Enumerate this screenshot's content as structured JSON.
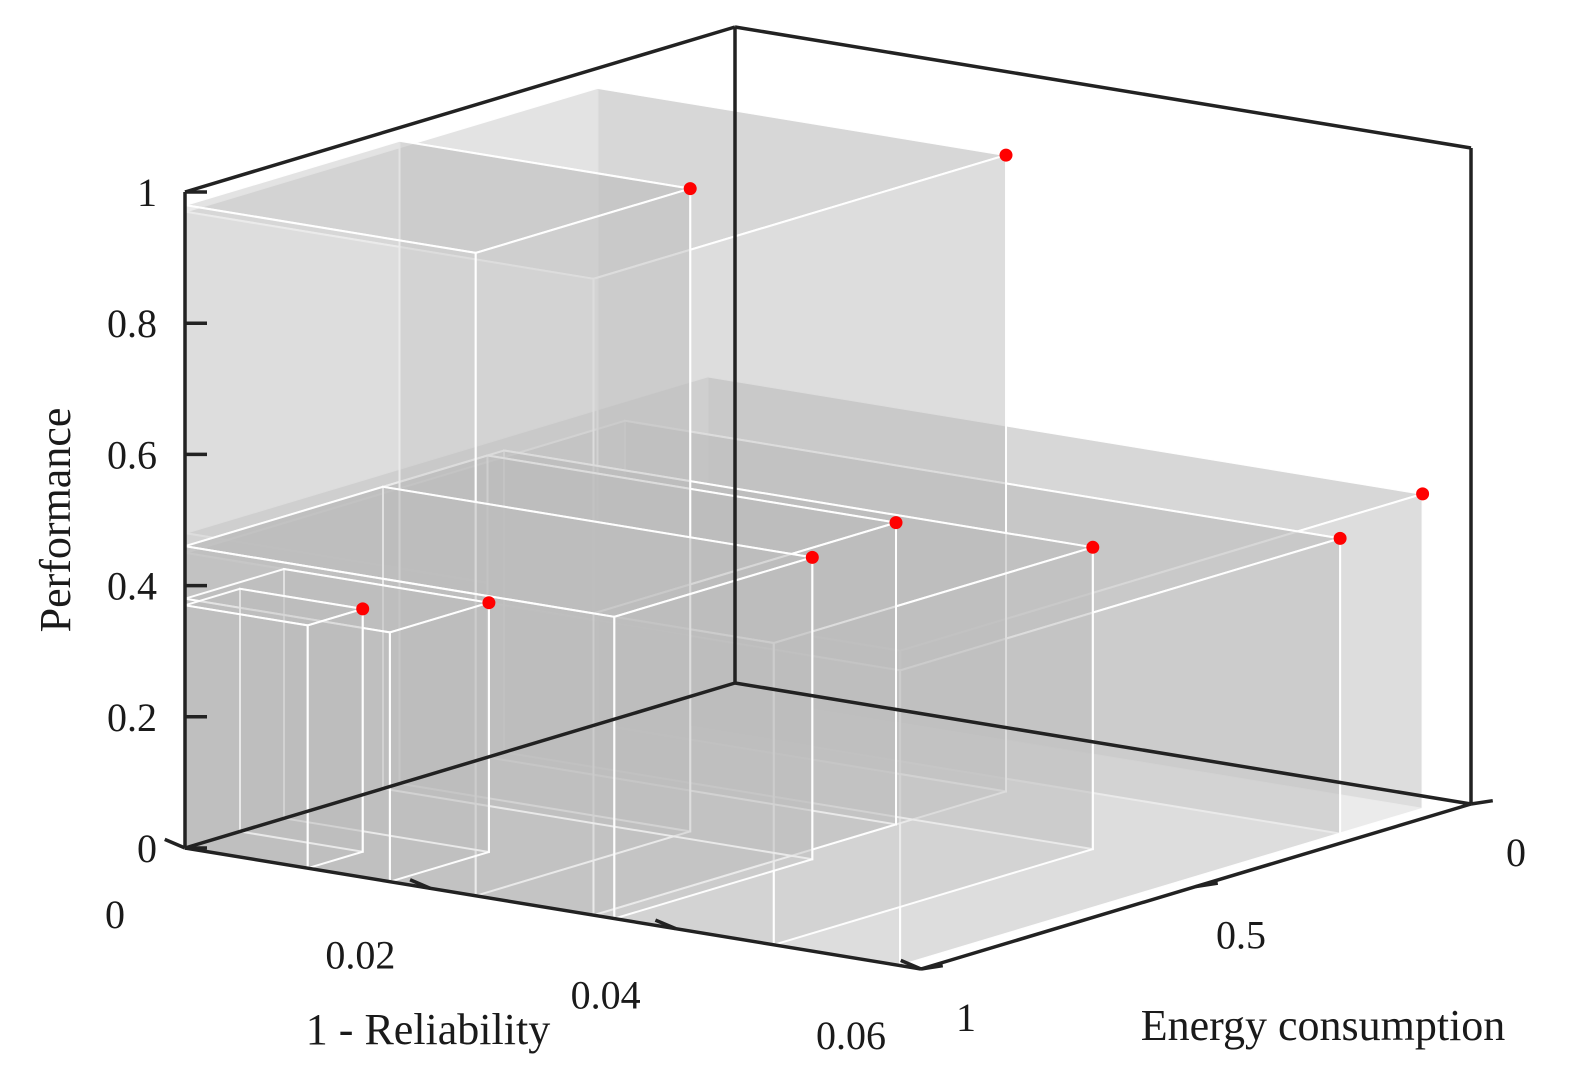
{
  "chart_data": {
    "type": "scatter",
    "subtype": "3d-hypervolume",
    "title": "",
    "xlabel": "1 - Reliability",
    "ylabel": "Energy consumption",
    "zlabel": "Performance",
    "xlim": [
      0,
      0.06
    ],
    "ylim": [
      0,
      1
    ],
    "zlim": [
      0,
      1
    ],
    "x_axis_direction": "increasing toward viewer-right",
    "y_axis_direction": "reversed (1 near viewer, 0 far)",
    "xticks": [
      "0",
      "0.02",
      "0.04",
      "0.06"
    ],
    "yticks": [
      "0",
      "0.5",
      "1"
    ],
    "zticks": [
      "0",
      "0.2",
      "0.4",
      "0.6",
      "0.8",
      "1"
    ],
    "grid": false,
    "box": true,
    "point_color": "#ff0000",
    "box_fill_color": "#bdbdbd",
    "box_edge_color": "#ffffff",
    "axis_color": "#222222",
    "points": [
      {
        "x": 0.01,
        "y": 0.9,
        "z": 0.37
      },
      {
        "x": 0.0167,
        "y": 0.82,
        "z": 0.38
      },
      {
        "x": 0.0237,
        "y": 0.61,
        "z": 0.98
      },
      {
        "x": 0.0333,
        "y": 0.25,
        "z": 0.97
      },
      {
        "x": 0.0333,
        "y": 0.45,
        "z": 0.46
      },
      {
        "x": 0.035,
        "y": 0.64,
        "z": 0.46
      },
      {
        "x": 0.048,
        "y": 0.42,
        "z": 0.46
      },
      {
        "x": 0.0583,
        "y": 0.05,
        "z": 0.48
      },
      {
        "x": 0.0583,
        "y": 0.2,
        "z": 0.45
      }
    ]
  }
}
